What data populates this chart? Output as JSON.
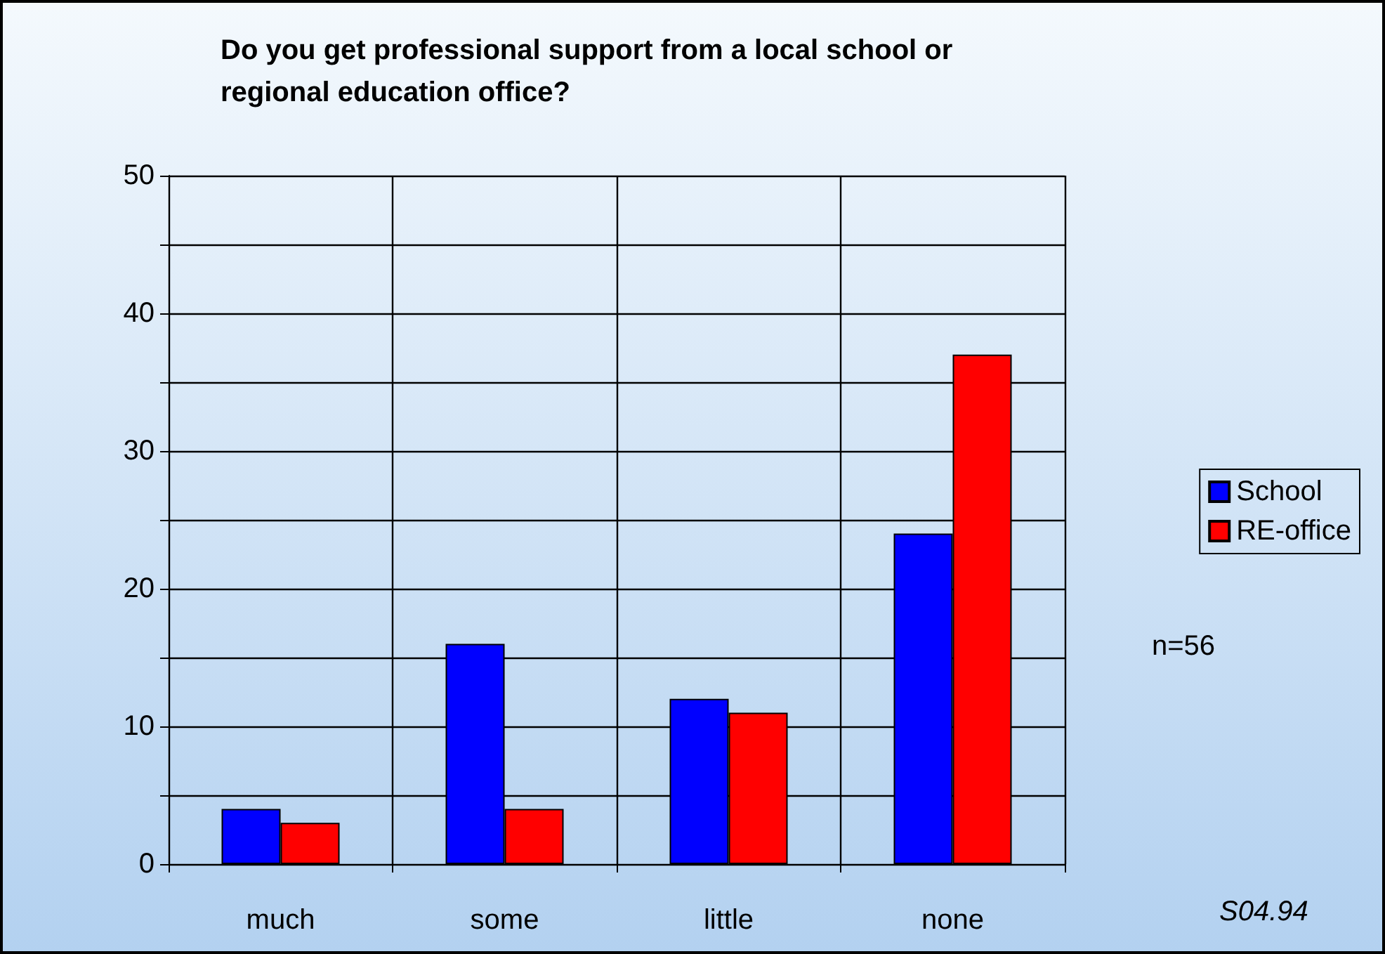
{
  "chart_data": {
    "type": "bar",
    "title": "Do you get professional support from a local school or\nregional education office?",
    "categories": [
      "much",
      "some",
      "little",
      "none"
    ],
    "series": [
      {
        "name": "School",
        "color": "#0000ff",
        "values": [
          4,
          16,
          12,
          24
        ]
      },
      {
        "name": "RE-office",
        "color": "#ff0000",
        "values": [
          3,
          4,
          11,
          37
        ]
      }
    ],
    "ylim": [
      0,
      50
    ],
    "yticks": [
      0,
      {
        "value": 5,
        "label": null
      },
      10,
      {
        "value": 15,
        "label": null
      },
      20,
      {
        "value": 25,
        "label": null
      },
      30,
      {
        "value": 35,
        "label": null
      },
      40,
      {
        "value": 45,
        "label": null
      },
      50
    ],
    "grid": true,
    "legend": "right",
    "annotations": [
      "n=56",
      "S04.94"
    ]
  }
}
